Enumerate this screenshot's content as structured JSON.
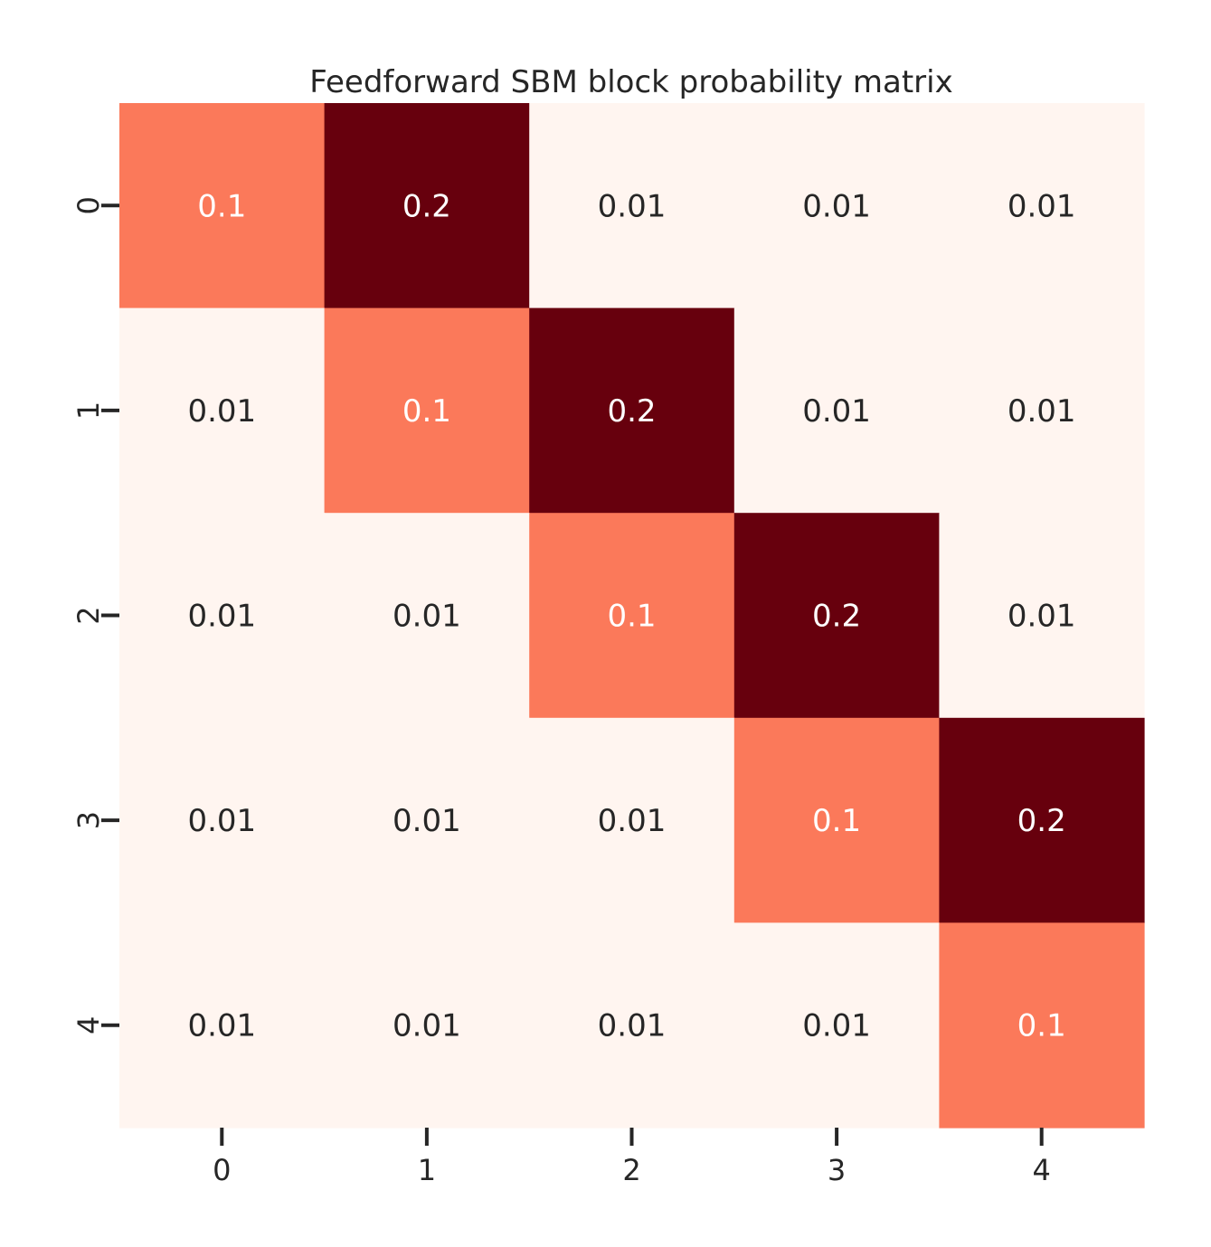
{
  "chart_data": {
    "type": "heatmap",
    "title": "Feedforward SBM block probability matrix",
    "xlabel": "",
    "ylabel": "",
    "x_categories": [
      "0",
      "1",
      "2",
      "3",
      "4"
    ],
    "y_categories": [
      "0",
      "1",
      "2",
      "3",
      "4"
    ],
    "values": [
      [
        0.1,
        0.2,
        0.01,
        0.01,
        0.01
      ],
      [
        0.01,
        0.1,
        0.2,
        0.01,
        0.01
      ],
      [
        0.01,
        0.01,
        0.1,
        0.2,
        0.01
      ],
      [
        0.01,
        0.01,
        0.01,
        0.1,
        0.2
      ],
      [
        0.01,
        0.01,
        0.01,
        0.01,
        0.1
      ]
    ],
    "labels": [
      [
        "0.1",
        "0.2",
        "0.01",
        "0.01",
        "0.01"
      ],
      [
        "0.01",
        "0.1",
        "0.2",
        "0.01",
        "0.01"
      ],
      [
        "0.01",
        "0.01",
        "0.1",
        "0.2",
        "0.01"
      ],
      [
        "0.01",
        "0.01",
        "0.01",
        "0.1",
        "0.2"
      ],
      [
        "0.01",
        "0.01",
        "0.01",
        "0.01",
        "0.1"
      ]
    ],
    "colormap": "Reds",
    "colors": {
      "low": "#fff5f0",
      "mid": "#fb7252",
      "high": "#67000d",
      "text_dark": "#262626",
      "text_light": "#ffffff"
    },
    "colorbar": false,
    "grid": false
  }
}
